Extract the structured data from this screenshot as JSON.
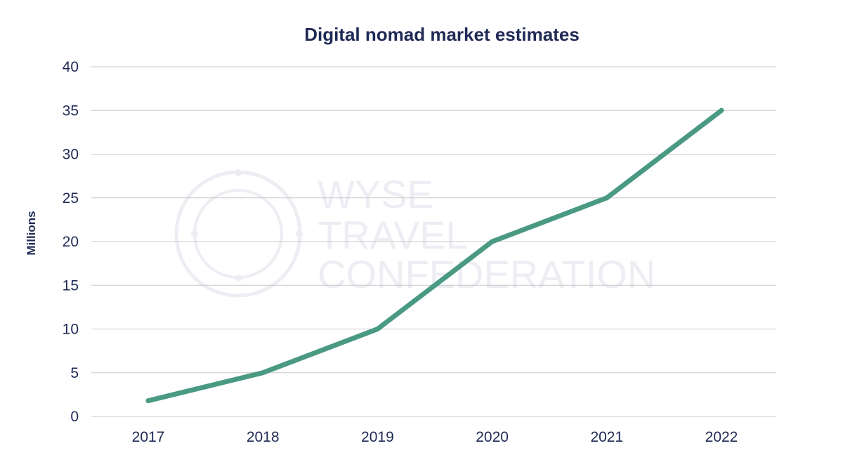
{
  "chart_data": {
    "type": "line",
    "title": "Digital nomad market estimates",
    "xlabel": "",
    "ylabel": "Millions",
    "categories": [
      "2017",
      "2018",
      "2019",
      "2020",
      "2021",
      "2022"
    ],
    "series": [
      {
        "values": [
          1.8,
          5,
          10,
          20,
          25,
          35
        ]
      }
    ],
    "ylim": [
      0,
      40
    ],
    "yticks": [
      0,
      5,
      10,
      15,
      20,
      25,
      30,
      35,
      40
    ],
    "grid": true,
    "line_color": "#4a9a83",
    "text_color": "#1f2a55"
  },
  "watermark": {
    "lines": [
      "WYSE",
      "TRAVEL",
      "CONFEDERATION"
    ]
  }
}
